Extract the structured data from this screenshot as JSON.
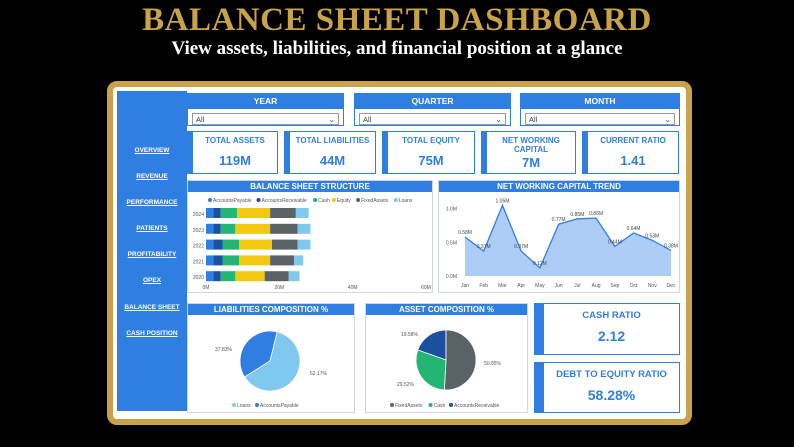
{
  "hero": {
    "title": "BALANCE SHEET DASHBOARD",
    "subtitle": "View assets, liabilities, and financial position at a glance"
  },
  "sidebar": {
    "items": [
      "OVERVIEW",
      "REVENUE",
      "PERFORMANCE",
      "PATIENTS",
      "PROFITABILITY",
      "OPEX",
      "BALANCE SHEET",
      "CASH POSITION"
    ]
  },
  "slicers": [
    {
      "label": "YEAR",
      "value": "All"
    },
    {
      "label": "QUARTER",
      "value": "All"
    },
    {
      "label": "MONTH",
      "value": "All"
    }
  ],
  "kpis": [
    {
      "label": "TOTAL ASSETS",
      "value": "119M"
    },
    {
      "label": "TOTAL LIABILITIES",
      "value": "44M"
    },
    {
      "label": "TOTAL EQUITY",
      "value": "75M"
    },
    {
      "label": "NET WORKING CAPITAL",
      "value": "7M"
    },
    {
      "label": "CURRENT RATIO",
      "value": "1.41"
    }
  ],
  "ratios": {
    "cash": {
      "label": "CASH RATIO",
      "value": "2.12"
    },
    "debt_equity": {
      "label": "DEBT TO EQUITY RATIO",
      "value": "58.28%"
    }
  },
  "colors": {
    "accent": "#2F7FE3",
    "gold": "#C9A24A",
    "accounts_payable": "#2F7FE3",
    "accounts_receivable": "#1B4FA0",
    "cash": "#22B573",
    "equity": "#F2C811",
    "fixed_assets": "#5A6266",
    "loans": "#7FC8F0"
  },
  "chart_data": [
    {
      "type": "bar",
      "title": "BALANCE SHEET STRUCTURE",
      "stacked": true,
      "orientation": "horizontal",
      "categories": [
        "2024",
        "2023",
        "2022",
        "2021",
        "2020"
      ],
      "series": [
        {
          "name": "AccountsPayable",
          "values": [
            2,
            2,
            2,
            2,
            2
          ]
        },
        {
          "name": "AccountsReceivable",
          "values": [
            2,
            2,
            2.5,
            2.5,
            2
          ]
        },
        {
          "name": "Cash",
          "values": [
            4.5,
            4,
            4.5,
            4.5,
            4
          ]
        },
        {
          "name": "Equity",
          "values": [
            9,
            9.5,
            9,
            8.5,
            8
          ]
        },
        {
          "name": "FixedAssets",
          "values": [
            7,
            7.5,
            7,
            6.5,
            6.5
          ]
        },
        {
          "name": "Loans",
          "values": [
            3.5,
            3.5,
            3.5,
            2.5,
            3
          ]
        }
      ],
      "xticks": [
        "0M",
        "20M",
        "40M",
        "60M"
      ],
      "xlim": [
        0,
        60
      ],
      "legend": "top"
    },
    {
      "type": "area",
      "title": "NET WORKING CAPITAL TREND",
      "categories": [
        "Jan",
        "Feb",
        "Mar",
        "Apr",
        "May",
        "Jun",
        "Jul",
        "Aug",
        "Sep",
        "Oct",
        "Nov",
        "Dec"
      ],
      "values": [
        0.58,
        0.37,
        1.05,
        0.37,
        0.12,
        0.77,
        0.85,
        0.86,
        0.44,
        0.64,
        0.53,
        0.38
      ],
      "labels": [
        "0.58M",
        "0.37M",
        "1.05M",
        "0.37M",
        "0.12M",
        "0.77M",
        "0.85M",
        "0.86M",
        "0.44M",
        "0.64M",
        "0.53M",
        "0.38M"
      ],
      "yticks": [
        "0.0M",
        "0.5M",
        "1.0M"
      ],
      "ylim": [
        0,
        1.1
      ]
    },
    {
      "type": "pie",
      "title": "LIABILITIES COMPOSITION %",
      "slices": [
        {
          "name": "AccountsPayable",
          "value": 37.83,
          "label": "37.83%"
        },
        {
          "name": "Loans",
          "value": 62.17,
          "label": "62.17%"
        }
      ],
      "legend": [
        "Loans",
        "AccountsPayable"
      ],
      "legend_position": "bottom"
    },
    {
      "type": "pie",
      "title": "ASSET COMPOSITION %",
      "slices": [
        {
          "name": "AccountsReceivable",
          "value": 19.58,
          "label": "19.58%"
        },
        {
          "name": "FixedAssets",
          "value": 50.85,
          "label": "50.85%"
        },
        {
          "name": "Cash",
          "value": 29.52,
          "label": "29.52%"
        }
      ],
      "legend": [
        "FixedAssets",
        "Cash",
        "AccountsReceivable"
      ],
      "legend_position": "bottom"
    }
  ]
}
